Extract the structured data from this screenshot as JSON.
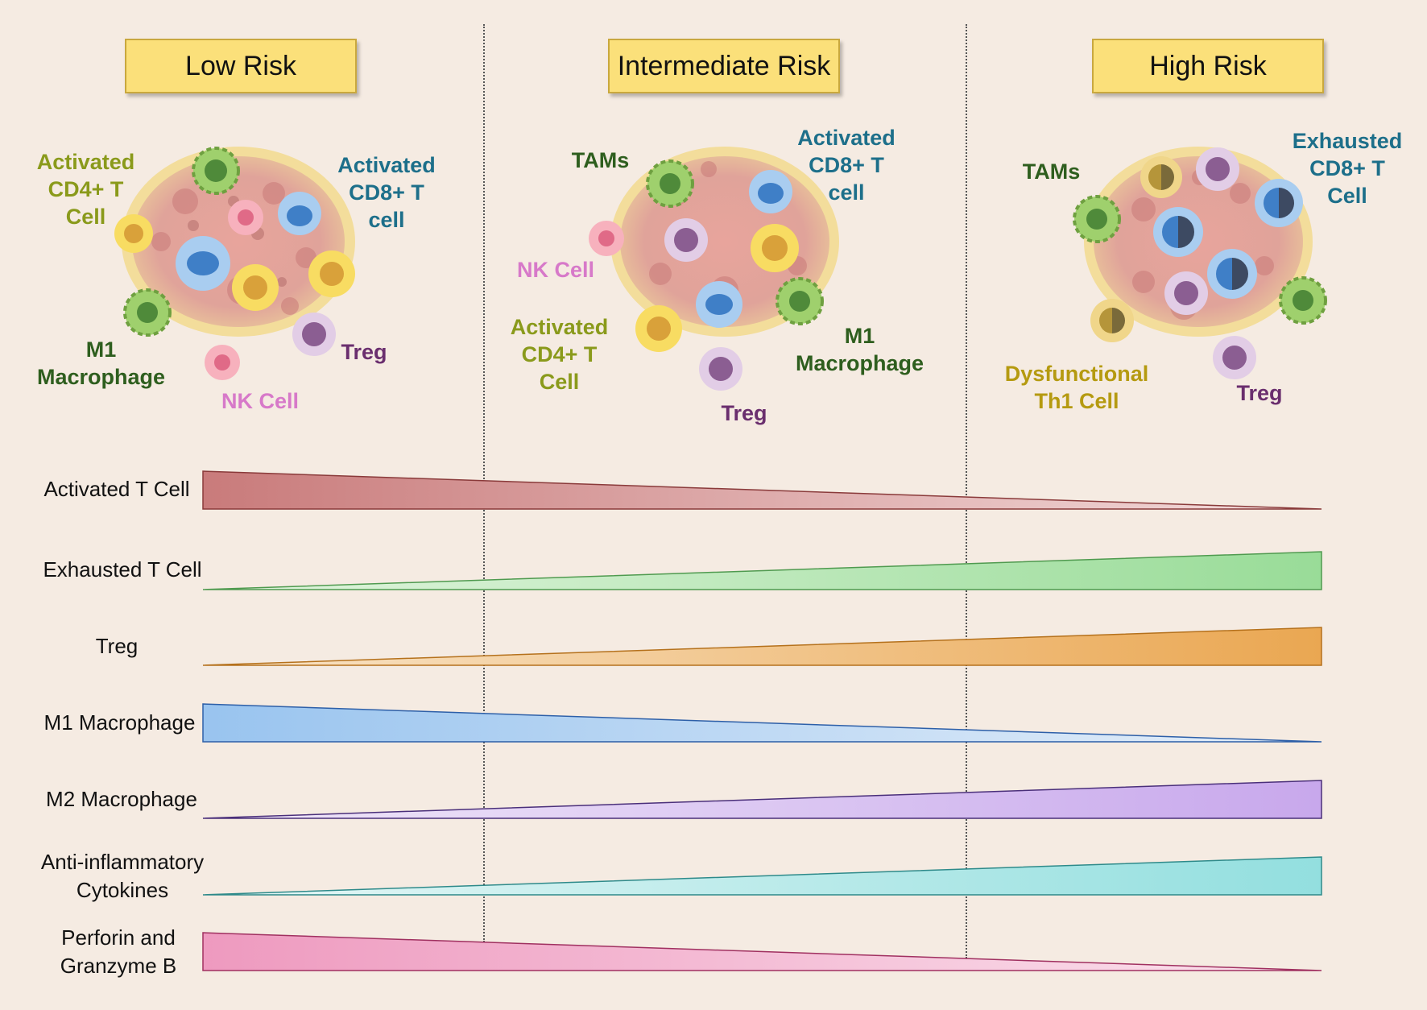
{
  "headers": {
    "low": "Low Risk",
    "intermediate": "Intermediate Risk",
    "high": "High Risk"
  },
  "panels": {
    "low": {
      "activated_cd4": "Activated\nCD4+ T\nCell",
      "activated_cd8": "Activated\nCD8+ T\ncell",
      "m1": "M1\nMacrophage",
      "nk": "NK Cell",
      "treg": "Treg"
    },
    "intermediate": {
      "tams": "TAMs",
      "activated_cd8": "Activated\nCD8+ T\ncell",
      "nk": "NK Cell",
      "activated_cd4": "Activated\nCD4+ T\nCell",
      "m1": "M1\nMacrophage",
      "treg": "Treg"
    },
    "high": {
      "tams": "TAMs",
      "exhausted_cd8": "Exhausted\nCD8+ T\nCell",
      "dysfunctional_th1": "Dysfunctional\nTh1 Cell",
      "treg": "Treg"
    }
  },
  "colors": {
    "background": "#f5ebe2",
    "header_fill": "#fbe07a",
    "olive_label": "#8a9a1b",
    "teal_label": "#1d6f8a",
    "dark_green_label": "#2e5e1e",
    "pink_label": "#d779c9",
    "purple_label": "#6a2e6e",
    "gold_label": "#b59a10"
  },
  "gradients": [
    {
      "label": "Activated T Cell",
      "trend": "decreasing",
      "color": "#c97b7b",
      "light": "#f3dcdc",
      "edge": "#8a3a3a"
    },
    {
      "label": "Exhausted T Cell",
      "trend": "increasing",
      "color": "#99dc98",
      "light": "#e2f5df",
      "edge": "#4f9a4f"
    },
    {
      "label": "Treg",
      "trend": "increasing",
      "color": "#eaa752",
      "light": "#f9e5c9",
      "edge": "#b5711c"
    },
    {
      "label": "M1 Macrophage",
      "trend": "decreasing",
      "color": "#99c4ef",
      "light": "#e6eff9",
      "edge": "#2d5fa8"
    },
    {
      "label": "M2 Macrophage",
      "trend": "increasing",
      "color": "#c8a8ec",
      "light": "#f0e8f9",
      "edge": "#4a2f7a"
    },
    {
      "label": "Anti-inflammatory\nCytokines",
      "trend": "increasing",
      "color": "#93dfdf",
      "light": "#e6f7f6",
      "edge": "#2e8a8a"
    },
    {
      "label": "Perforin and\nGranzyme B",
      "trend": "decreasing",
      "color": "#ee9abf",
      "light": "#fbe3ee",
      "edge": "#a03060"
    }
  ]
}
